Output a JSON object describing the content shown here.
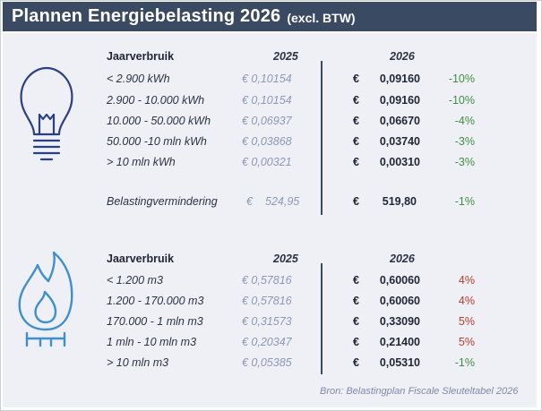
{
  "header": {
    "title": "Plannen Energiebelasting 2026",
    "subtitle": "(excl. BTW)"
  },
  "electricity": {
    "icon": "lightbulb-icon",
    "col_label": "Jaarverbruik",
    "col_old": "2025",
    "col_new": "2026",
    "rows": [
      {
        "label": "< 2.900 kWh",
        "old": "€ 0,10154",
        "cur": "€",
        "new": "0,09160",
        "change": "-10%"
      },
      {
        "label": "2.900 - 10.000 kWh",
        "old": "€ 0,10154",
        "cur": "€",
        "new": "0,09160",
        "change": "-10%"
      },
      {
        "label": "10.000 - 50.000 kWh",
        "old": "€ 0,06937",
        "cur": "€",
        "new": "0,06670",
        "change": "-4%"
      },
      {
        "label": "50.000 -10 mln kWh",
        "old": "€ 0,03868",
        "cur": "€",
        "new": "0,03740",
        "change": "-3%"
      },
      {
        "label": ">  10 mln kWh",
        "old": "€ 0,00321",
        "cur": "€",
        "new": "0,00310",
        "change": "-3%"
      }
    ],
    "reduction": {
      "label": "Belastingvermindering",
      "old_cur": "€",
      "old": "524,95",
      "cur": "€",
      "new": "519,80",
      "change": "-1%"
    }
  },
  "gas": {
    "icon": "gas-flame-icon",
    "col_label": "Jaarverbruik",
    "col_old": "2025",
    "col_new": "2026",
    "rows": [
      {
        "label": "< 1.200 m3",
        "old": "€ 0,57816",
        "cur": "€",
        "new": "0,60060",
        "change": "4%"
      },
      {
        "label": "1.200 - 170.000 m3",
        "old": "€ 0,57816",
        "cur": "€",
        "new": "0,60060",
        "change": "4%"
      },
      {
        "label": "170.000 - 1 mln m3",
        "old": "€ 0,31573",
        "cur": "€",
        "new": "0,33090",
        "change": "5%"
      },
      {
        "label": "1 mln - 10 mln m3",
        "old": "€ 0,20347",
        "cur": "€",
        "new": "0,21400",
        "change": "5%"
      },
      {
        "label": "> 10 mln m3",
        "old": "€ 0,05385",
        "cur": "€",
        "new": "0,05310",
        "change": "-1%"
      }
    ]
  },
  "source": "Bron: Belastingplan Fiscale Sleuteltabel 2026",
  "colors": {
    "header_bg": "#3b4a63",
    "panel_bg": "#eef0f5",
    "icon_blue": "#2a3f86",
    "flame_blue": "#3d8fd0",
    "decrease": "#3f8f3f",
    "increase": "#c0392b"
  }
}
